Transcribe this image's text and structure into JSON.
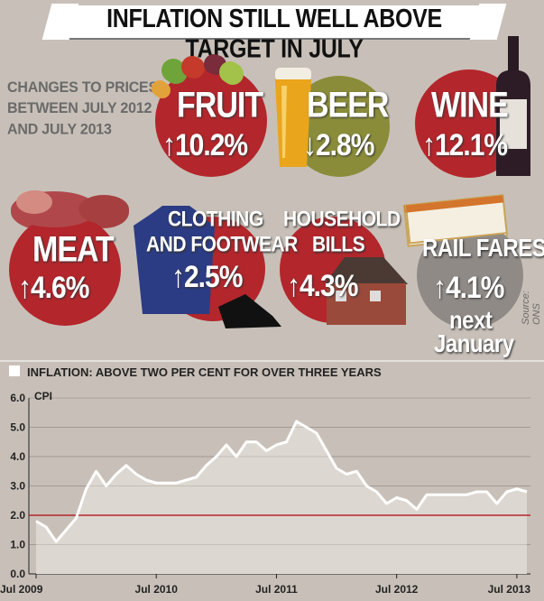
{
  "header": {
    "title": "INFLATION STILL WELL ABOVE TARGET IN JULY"
  },
  "intro": {
    "line1": "CHANGES TO PRICES",
    "line2": "BETWEEN JULY 2012",
    "line3": "AND JULY 2013"
  },
  "items": [
    {
      "name": "FRUIT",
      "arrow": "↑",
      "change": "10.2%",
      "color": "#b3262c"
    },
    {
      "name": "BEER",
      "arrow": "↓",
      "change": "2.8%",
      "color": "#8a8c3a"
    },
    {
      "name": "WINE",
      "arrow": "↑",
      "change": "12.1%",
      "color": "#b3262c"
    },
    {
      "name": "MEAT",
      "arrow": "↑",
      "change": "4.6%",
      "color": "#b3262c"
    },
    {
      "name_line1": "CLOTHING",
      "name_line2": "AND FOOTWEAR",
      "arrow": "↑",
      "change": "2.5%",
      "color": "#b3262c"
    },
    {
      "name_line1": "HOUSEHOLD",
      "name_line2": "BILLS",
      "arrow": "↑",
      "change": "4.3%",
      "color": "#b3262c"
    },
    {
      "name": "RAIL FARES",
      "arrow": "↑",
      "change": "4.1%",
      "note_line1": "next",
      "note_line2": "January",
      "color": "#8f8a86"
    }
  ],
  "source": "Source: ONS",
  "chart_data": {
    "type": "line",
    "title": "INFLATION: ABOVE TWO PER CENT FOR OVER THREE YEARS",
    "ylabel": "CPI",
    "xlabel": "",
    "ylim": [
      0,
      6
    ],
    "yticks": [
      "0.0",
      "1.0",
      "2.0",
      "3.0",
      "4.0",
      "5.0",
      "6.0"
    ],
    "xticks": [
      "Jul 2009",
      "Jul 2010",
      "Jul 2011",
      "Jul 2012",
      "Jul 2013"
    ],
    "target": 2.0,
    "grid": true,
    "colors": {
      "line": "#ffffff",
      "area": "#ddd7d1",
      "target": "#b3262c",
      "grid": "#8a8580"
    },
    "series": [
      {
        "values": [
          1.8,
          1.6,
          1.1,
          1.5,
          1.9,
          2.9,
          3.5,
          3.0,
          3.4,
          3.7,
          3.4,
          3.2,
          3.1,
          3.1,
          3.1,
          3.2,
          3.3,
          3.7,
          4.0,
          4.4,
          4.0,
          4.5,
          4.5,
          4.2,
          4.4,
          4.5,
          5.2,
          5.0,
          4.8,
          4.2,
          3.6,
          3.4,
          3.5,
          3.0,
          2.8,
          2.4,
          2.6,
          2.5,
          2.2,
          2.7,
          2.7,
          2.7,
          2.7,
          2.7,
          2.8,
          2.8,
          2.4,
          2.8,
          2.9,
          2.8
        ]
      }
    ]
  }
}
